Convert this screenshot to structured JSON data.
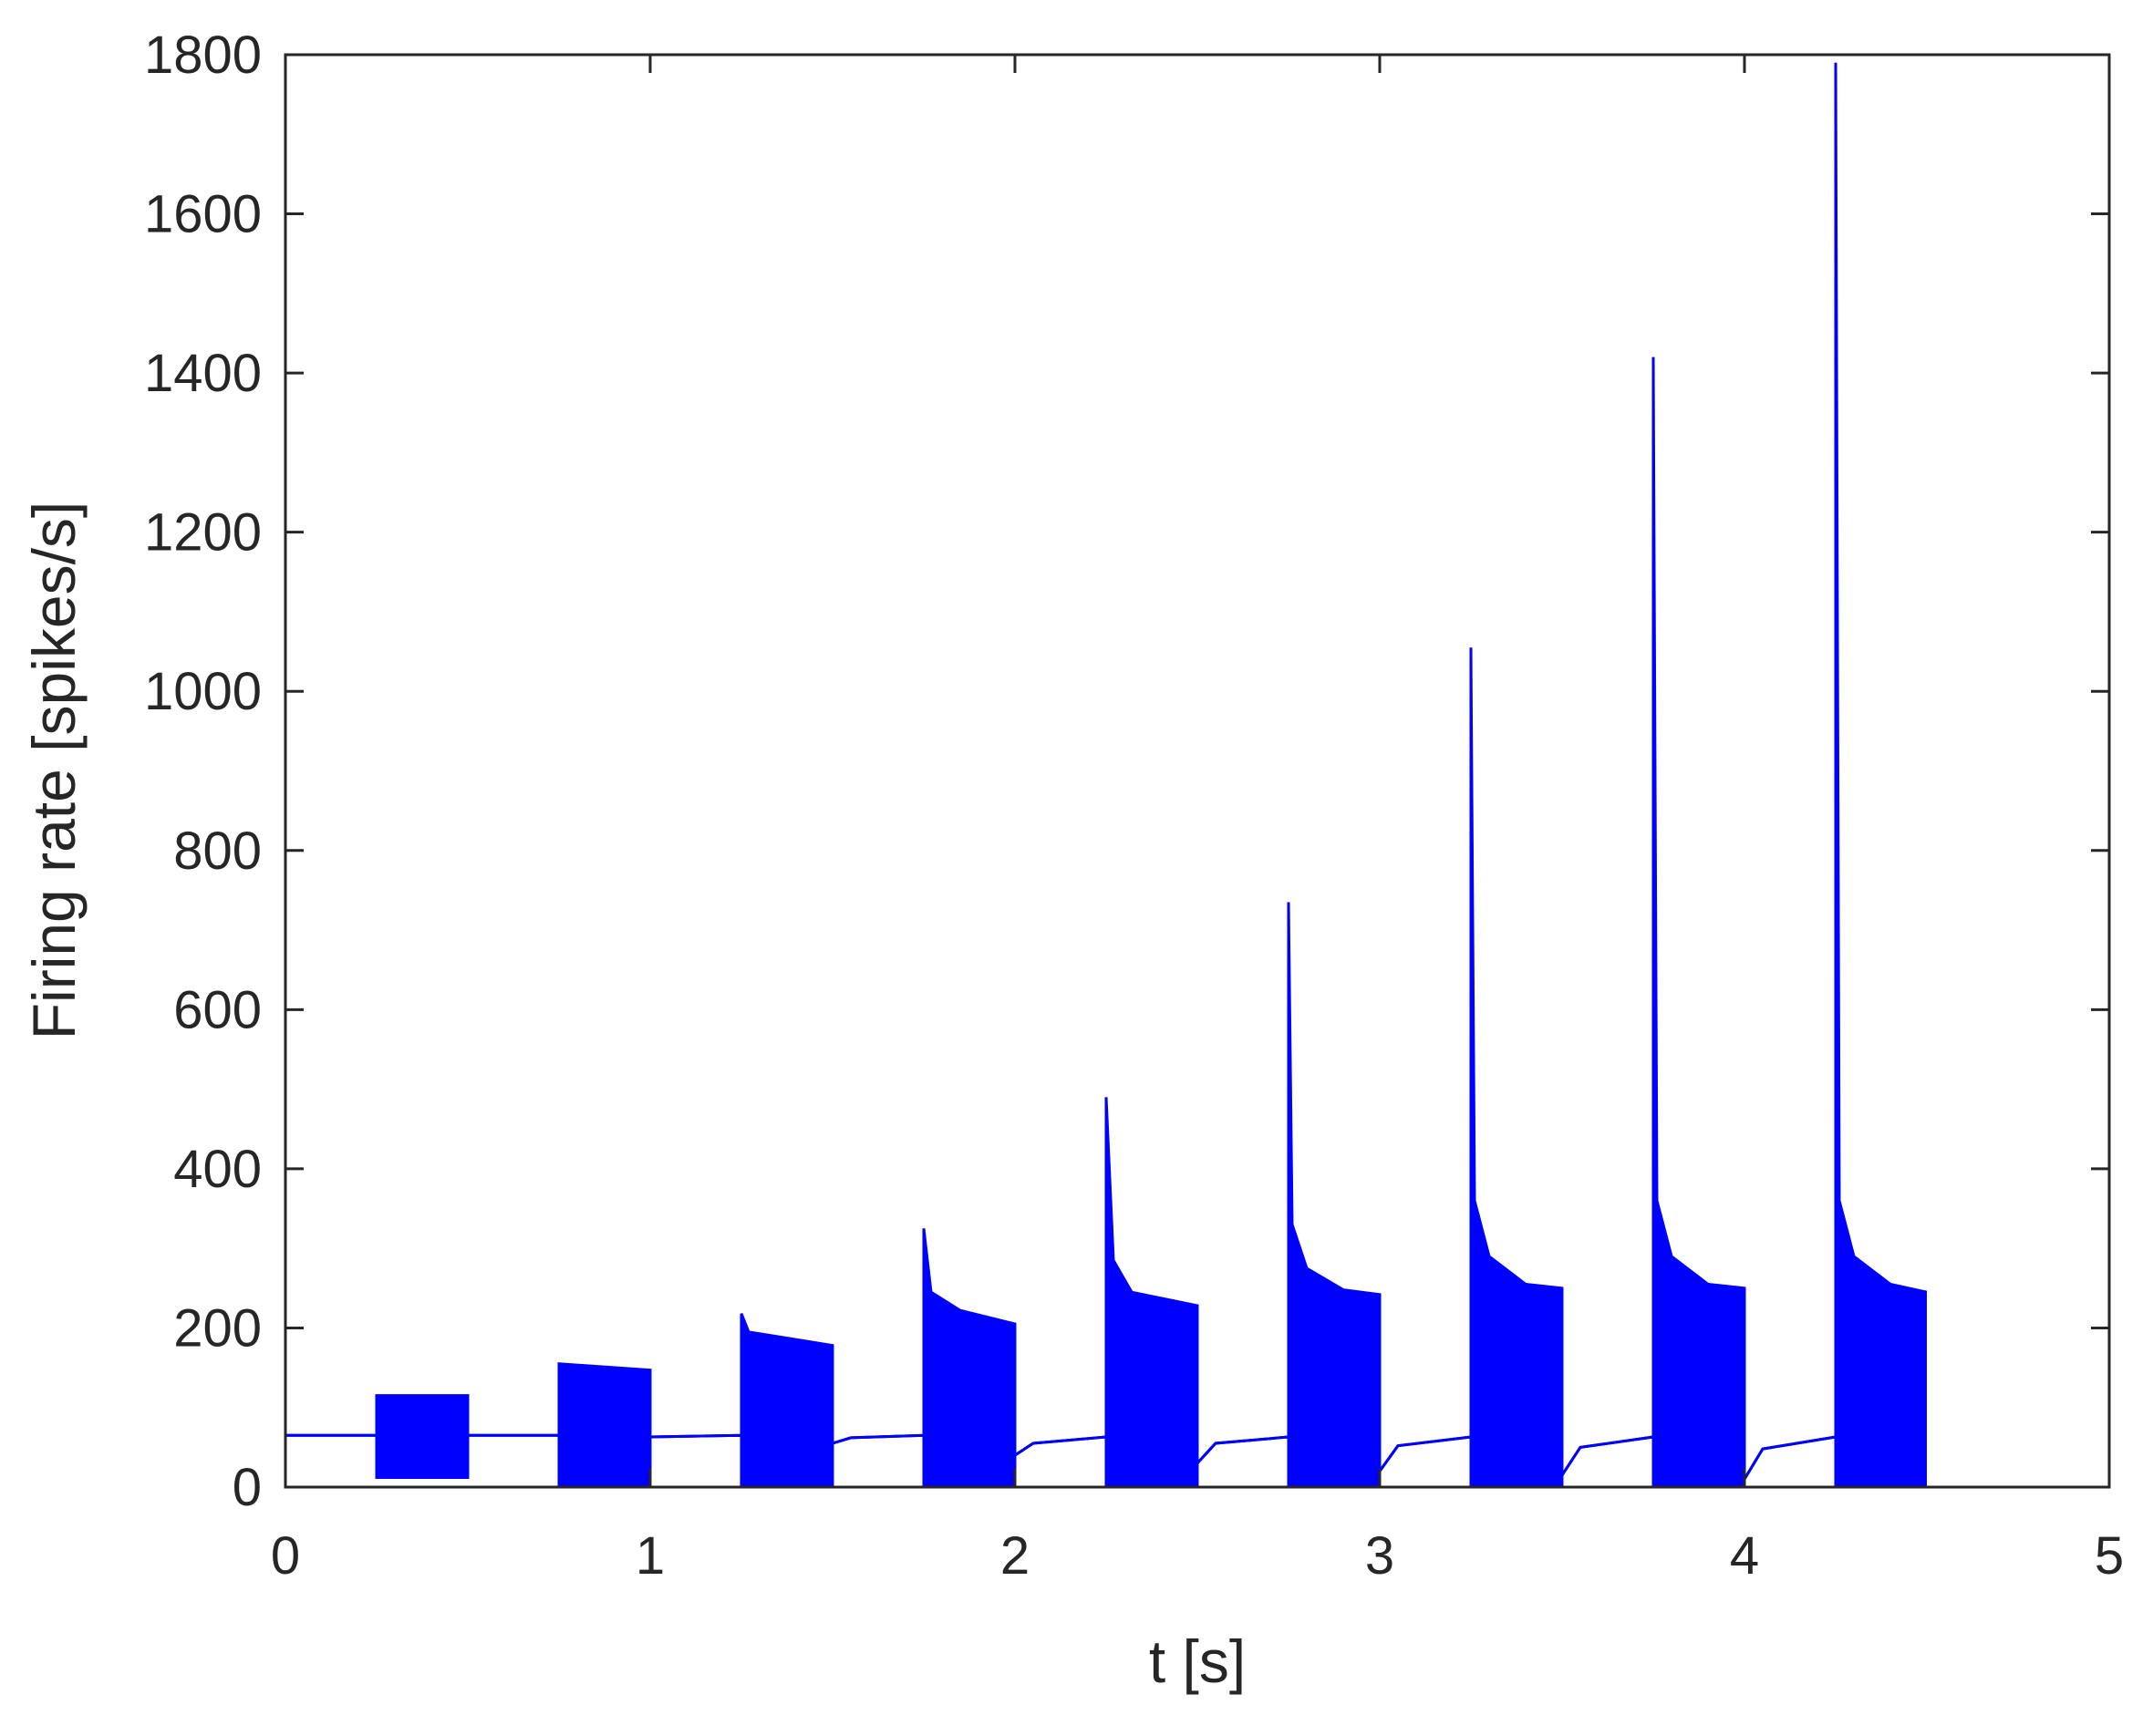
{
  "chart_data": {
    "type": "line",
    "xlabel": "t [s]",
    "ylabel": "Firing rate [spikes/s]",
    "xlim": [
      0,
      5
    ],
    "xticks": [
      0,
      1,
      2,
      3,
      4,
      5
    ],
    "ylim": [
      0,
      1800
    ],
    "yticks": [
      0,
      200,
      400,
      600,
      800,
      1000,
      1200,
      1400,
      1600,
      1800
    ],
    "fill_between": true,
    "x": [
      0,
      0.25,
      0.25,
      0.5,
      0.5,
      0.75,
      0.75,
      1.0,
      1.0,
      1.25,
      1.25,
      1.27,
      1.5,
      1.5,
      1.55,
      1.75,
      1.75,
      1.77,
      1.85,
      2.0,
      2.0,
      2.05,
      2.25,
      2.25,
      2.27,
      2.32,
      2.5,
      2.5,
      2.55,
      2.75,
      2.75,
      2.76,
      2.8,
      2.9,
      3.0,
      3.0,
      3.05,
      3.25,
      3.25,
      3.26,
      3.3,
      3.4,
      3.5,
      3.5,
      3.55,
      3.75,
      3.75,
      3.76,
      3.8,
      3.9,
      4.0,
      4.0,
      4.05,
      4.25,
      4.25,
      4.26,
      4.3,
      4.4,
      4.5
    ],
    "series": [
      {
        "color": "#0000ff",
        "values": [
          65,
          65,
          115,
          115,
          65,
          65,
          155,
          147,
          63,
          65,
          218,
          195,
          178,
          55,
          62,
          65,
          325,
          245,
          222,
          205,
          40,
          55,
          63,
          490,
          285,
          245,
          228,
          30,
          55,
          63,
          735,
          330,
          275,
          248,
          242,
          20,
          52,
          63,
          1055,
          360,
          290,
          255,
          250,
          15,
          50,
          63,
          1420,
          360,
          290,
          255,
          250,
          10,
          48,
          63,
          1790,
          360,
          290,
          255,
          245
        ]
      },
      {
        "color": "#0000ff",
        "values": [
          65,
          65,
          12,
          12,
          65,
          65,
          0,
          0,
          63,
          65,
          0,
          0,
          0,
          55,
          62,
          65,
          0,
          0,
          0,
          0,
          40,
          55,
          63,
          0,
          0,
          0,
          0,
          30,
          55,
          63,
          0,
          0,
          0,
          0,
          0,
          20,
          52,
          63,
          0,
          0,
          0,
          0,
          0,
          15,
          50,
          63,
          0,
          0,
          0,
          0,
          0,
          10,
          48,
          63,
          0,
          0,
          0,
          0,
          0
        ]
      }
    ]
  }
}
